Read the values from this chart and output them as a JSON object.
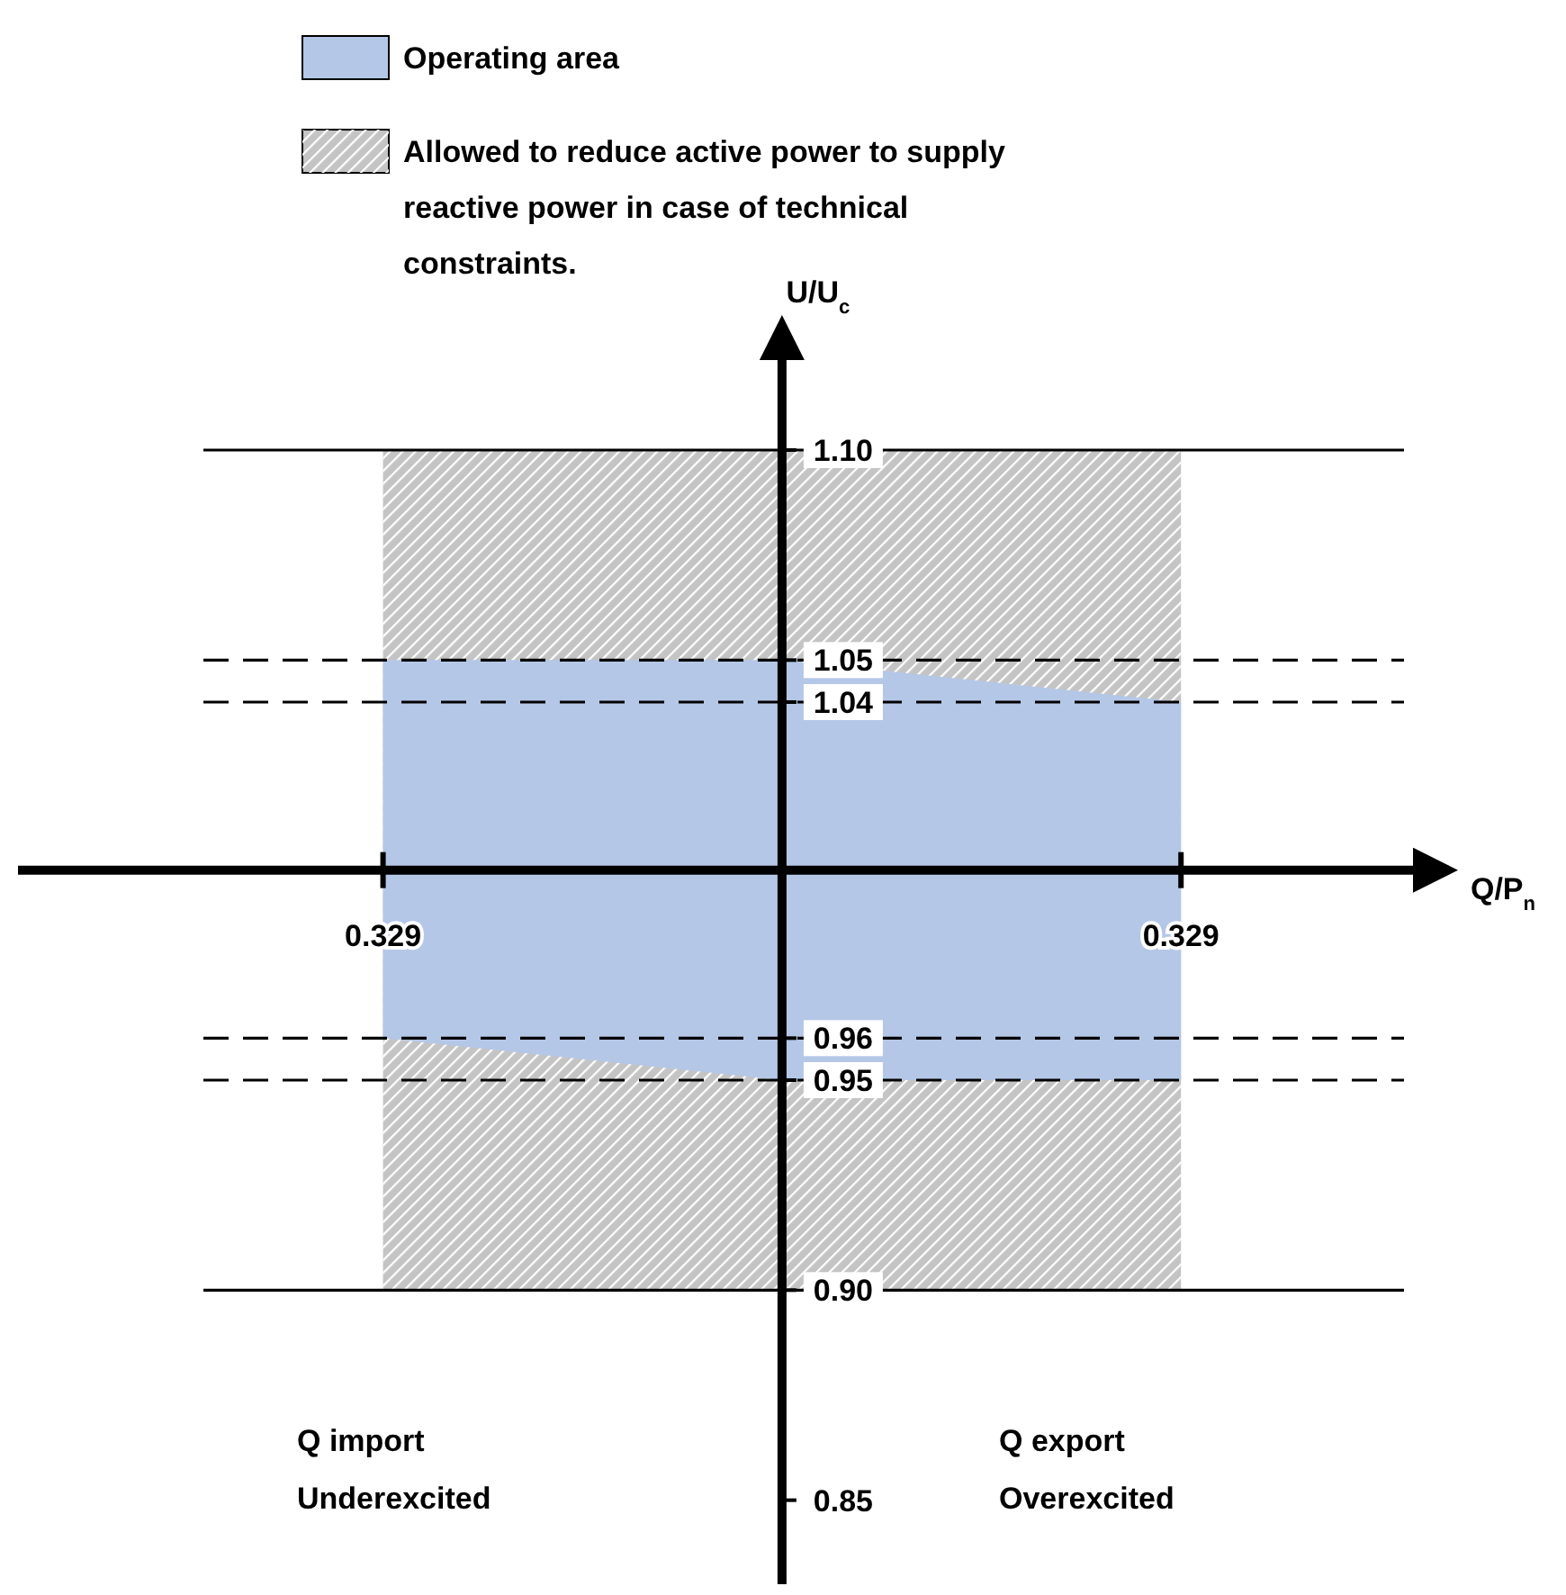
{
  "chart_data": {
    "type": "area",
    "xlabel": "Q/P$_{n}$",
    "ylabel": "U/U$_{c}$",
    "legend": "top left",
    "x": [
      -0.329,
      0,
      0.329
    ],
    "xlim": [
      -0.63,
      0.55
    ],
    "ylim": [
      0.83,
      1.13
    ],
    "xticks": [
      {
        "value": -0.329,
        "label": "0.329"
      },
      {
        "value": 0.329,
        "label": "0.329"
      }
    ],
    "yticks": [
      0.85,
      {
        "value": 0.9,
        "label": "0.90"
      },
      0.95,
      0.96,
      1.04,
      1.05,
      {
        "value": 1.1,
        "label": "1.10"
      }
    ],
    "series": [
      {
        "name": "Operating area",
        "color": "#b4c7e7",
        "values": [
          null,
          null,
          null
        ],
        "upper": [
          1.05,
          1.05,
          1.04
        ],
        "lower": [
          0.96,
          0.95,
          0.95
        ]
      },
      {
        "name": "Allowed to reduce active power to supply reactive power in case of technical constraints.",
        "color": "#c4c4c4",
        "values": [
          null,
          null,
          null
        ],
        "upper": [
          1.1,
          1.1,
          1.1
        ],
        "lower": [
          0.9,
          0.9,
          0.9
        ]
      }
    ],
    "ref_lines": [
      {
        "axis": "y",
        "value": 1.1,
        "line_style": "solid"
      },
      {
        "axis": "y",
        "value": 1.05,
        "line_style": "dashed"
      },
      {
        "axis": "y",
        "value": 1.04,
        "line_style": "dashed"
      },
      {
        "axis": "y",
        "value": 0.96,
        "line_style": "dashed"
      },
      {
        "axis": "y",
        "value": 0.95,
        "line_style": "dashed"
      },
      {
        "axis": "y",
        "value": 0.9,
        "line_style": "solid"
      }
    ],
    "annotations": [
      "Q import\nUnderexcited",
      "Q export\nOverexcited"
    ]
  }
}
